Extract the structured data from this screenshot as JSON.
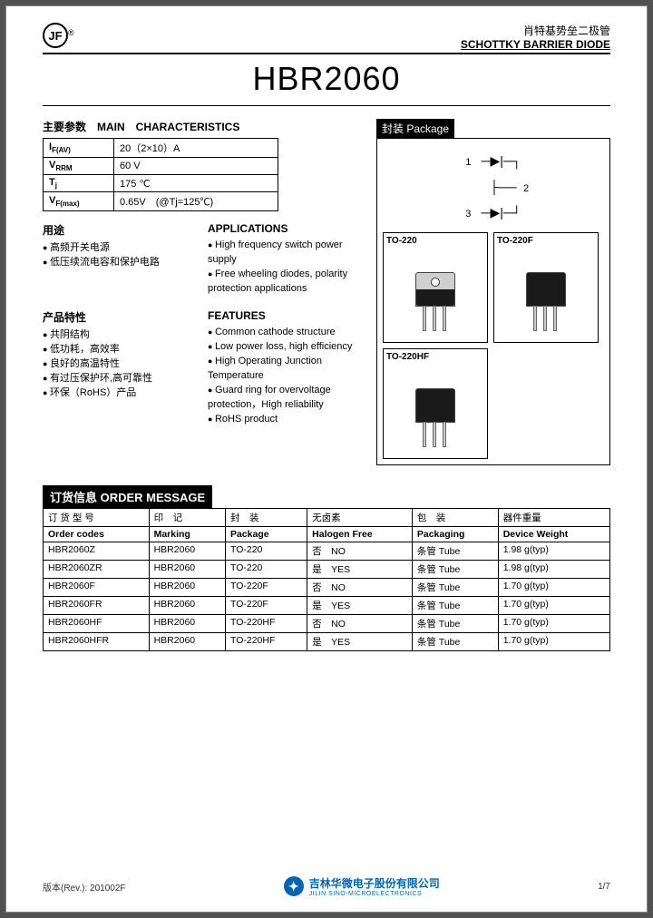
{
  "header": {
    "logo_text": "JF",
    "reg": "®",
    "title_cn": "肖特基势垒二极管",
    "title_en": "SCHOTTKY BARRIER DIODE"
  },
  "part_number": "HBR2060",
  "main_char": {
    "title": "主要参数　MAIN　CHARACTERISTICS",
    "rows": [
      {
        "param": "I",
        "sub": "F(AV)",
        "value": "20（2×10）A"
      },
      {
        "param": "V",
        "sub": "RRM",
        "value": "60 V"
      },
      {
        "param": "T",
        "sub": "j",
        "value": "175 ℃"
      },
      {
        "param": "V",
        "sub": "F(max)",
        "value": "0.65V　(@Tj=125℃)"
      }
    ]
  },
  "applications": {
    "cn_title": "用途",
    "cn_items": [
      "高频开关电源",
      "低压续流电容和保护电路"
    ],
    "en_title": "APPLICATIONS",
    "en_items": [
      "High frequency switch power supply",
      "Free wheeling diodes, polarity protection applications"
    ]
  },
  "features": {
    "cn_title": "产品特性",
    "cn_items": [
      "共阴结构",
      "低功耗，高效率",
      "良好的高温特性",
      "有过压保护环,高可靠性",
      "环保（RoHS）产品"
    ],
    "en_title": "FEATURES",
    "en_items": [
      "Common cathode structure",
      "Low power loss, high efficiency",
      "High Operating Junction Temperature",
      "Guard ring for overvoltage protection，High reliability",
      "RoHS product"
    ]
  },
  "package": {
    "title": "封装 Package",
    "schematic_pins": {
      "p1": "1",
      "p2": "2",
      "p3": "3"
    },
    "variants": [
      "TO-220",
      "TO-220F",
      "TO-220HF"
    ]
  },
  "order": {
    "title": "订货信息  ORDER MESSAGE",
    "columns_cn": [
      "订 货 型 号",
      "印　记",
      "封　装",
      "无卤素",
      "包　装",
      "器件重量"
    ],
    "columns_en": [
      "Order codes",
      "Marking",
      "Package",
      "Halogen Free",
      "Packaging",
      "Device Weight"
    ],
    "rows": [
      [
        "HBR2060Z",
        "HBR2060",
        "TO-220",
        "否　NO",
        "条管 Tube",
        "1.98 g(typ)"
      ],
      [
        "HBR2060ZR",
        "HBR2060",
        "TO-220",
        "是　YES",
        "条管 Tube",
        "1.98 g(typ)"
      ],
      [
        "HBR2060F",
        "HBR2060",
        "TO-220F",
        "否　NO",
        "条管 Tube",
        "1.70 g(typ)"
      ],
      [
        "HBR2060FR",
        "HBR2060",
        "TO-220F",
        "是　YES",
        "条管 Tube",
        "1.70 g(typ)"
      ],
      [
        "HBR2060HF",
        "HBR2060",
        "TO-220HF",
        "否　NO",
        "条管 Tube",
        "1.70 g(typ)"
      ],
      [
        "HBR2060HFR",
        "HBR2060",
        "TO-220HF",
        "是　YES",
        "条管 Tube",
        "1.70 g(typ)"
      ]
    ]
  },
  "footer": {
    "rev": "版本(Rev.):  201002F",
    "company_cn": "吉林华微电子股份有限公司",
    "company_en": "JILIN SINO-MICROELECTRONICS",
    "page": "1/7"
  }
}
